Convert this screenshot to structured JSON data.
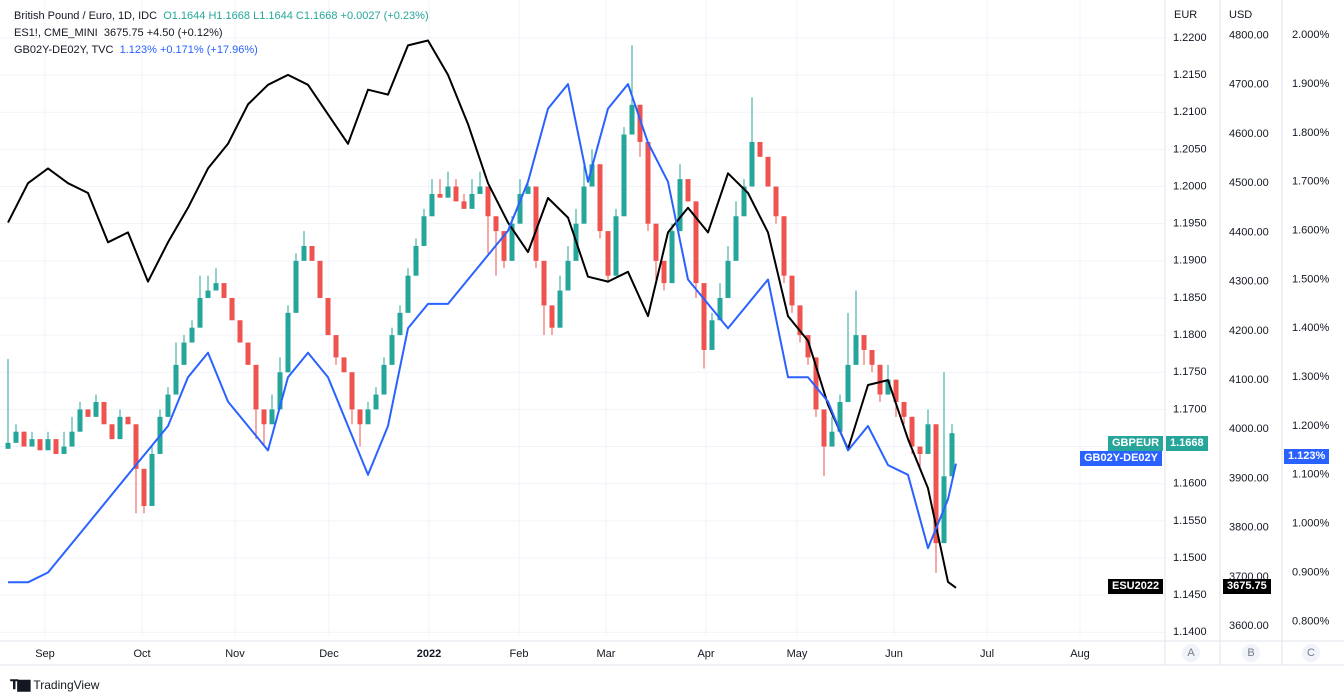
{
  "legend": {
    "l1_name": "British Pound / Euro, 1D, IDC",
    "l1_values": "O1.1644  H1.1668  L1.1644  C1.1668  +0.0027 (+0.23%)",
    "l2_name": "ES1!, CME_MINI",
    "l2_values": "3675.75  +4.50 (+0.12%)",
    "l3_name": "GB02Y-DE02Y, TVC",
    "l3_values": "1.123%  +0.171% (+17.96%)"
  },
  "axis_heads": {
    "eur": "EUR",
    "usd": "USD"
  },
  "tags": {
    "gbpeur_label": "GBPEUR",
    "gbpeur_value": "1.1668",
    "spread_label": "GB02Y-DE02Y",
    "spread_value": "1.123%",
    "es_label": "ESU2022",
    "es_value": "3675.75"
  },
  "corners": {
    "a": "A",
    "b": "B",
    "c": "C"
  },
  "brand": "TradingView",
  "colors": {
    "up": "#26a69a",
    "down": "#ef5350",
    "spread": "#2962ff",
    "es": "#000000"
  },
  "chart_data": {
    "type": "line",
    "x_ticks": [
      "Sep",
      "Oct",
      "Nov",
      "Dec",
      "2022",
      "Feb",
      "Mar",
      "Apr",
      "May",
      "Jun",
      "Jul",
      "Aug"
    ],
    "eur_axis": {
      "ticks": [
        "1.2200",
        "1.2150",
        "1.2100",
        "1.2050",
        "1.2000",
        "1.1950",
        "1.1900",
        "1.1850",
        "1.1800",
        "1.1750",
        "1.1700",
        "1.1650",
        "1.1600",
        "1.1550",
        "1.1500",
        "1.1450",
        "1.1400"
      ],
      "ylim": [
        1.1395,
        1.2243
      ]
    },
    "usd_axis": {
      "ticks": [
        "4800.00",
        "4700.00",
        "4600.00",
        "4500.00",
        "4400.00",
        "4300.00",
        "4200.00",
        "4100.00",
        "4000.00",
        "3900.00",
        "3800.00",
        "3700.00",
        "3600.00"
      ],
      "ylim": [
        3580,
        4860
      ]
    },
    "pct_axis": {
      "ticks": [
        "2.000%",
        "1.900%",
        "1.800%",
        "1.700%",
        "1.600%",
        "1.500%",
        "1.400%",
        "1.300%",
        "1.200%",
        "1.100%",
        "1.000%",
        "0.900%",
        "0.800%"
      ],
      "ylim": [
        0.77,
        2.06
      ]
    },
    "series": [
      {
        "name": "GBPEUR",
        "type": "candlestick",
        "axis": "eur",
        "x": [
          0,
          8,
          16,
          24,
          32,
          40,
          48,
          56,
          64,
          72,
          80,
          88,
          96,
          104,
          112,
          120,
          128,
          136,
          144,
          152,
          160,
          168,
          176,
          184,
          192,
          200,
          208,
          216,
          224,
          232,
          240,
          248,
          256,
          264,
          272,
          280,
          288,
          296,
          304,
          312,
          320,
          328,
          336,
          344,
          352,
          360,
          368,
          376,
          384,
          392,
          400,
          408,
          416,
          424,
          432,
          440,
          448,
          456,
          464,
          472,
          480,
          488,
          496,
          504,
          512,
          520,
          528,
          536,
          544,
          552,
          560,
          568,
          576,
          584,
          592,
          600,
          608,
          616,
          624,
          632,
          640,
          648,
          656,
          664,
          672,
          680,
          688,
          696,
          704,
          712,
          720,
          728,
          736,
          744,
          752,
          760,
          768,
          776,
          784,
          792,
          800,
          808,
          816,
          824,
          832,
          840,
          848,
          856,
          864,
          872,
          880,
          888,
          896,
          904,
          912,
          920,
          928,
          936,
          944
        ],
        "close": [
          1.1655,
          1.167,
          1.165,
          1.166,
          1.1645,
          1.166,
          1.164,
          1.165,
          1.167,
          1.17,
          1.169,
          1.171,
          1.168,
          1.166,
          1.169,
          1.168,
          1.162,
          1.157,
          1.164,
          1.169,
          1.172,
          1.176,
          1.179,
          1.181,
          1.185,
          1.186,
          1.187,
          1.185,
          1.182,
          1.179,
          1.176,
          1.17,
          1.168,
          1.17,
          1.175,
          1.183,
          1.19,
          1.192,
          1.19,
          1.185,
          1.18,
          1.177,
          1.175,
          1.17,
          1.168,
          1.17,
          1.172,
          1.176,
          1.18,
          1.183,
          1.188,
          1.192,
          1.196,
          1.199,
          1.1985,
          1.2,
          1.198,
          1.197,
          1.199,
          1.2,
          1.196,
          1.194,
          1.19,
          1.195,
          1.199,
          1.2,
          1.19,
          1.184,
          1.181,
          1.186,
          1.19,
          1.195,
          1.2,
          1.203,
          1.194,
          1.188,
          1.196,
          1.207,
          1.211,
          1.206,
          1.195,
          1.19,
          1.187,
          1.194,
          1.201,
          1.198,
          1.187,
          1.178,
          1.182,
          1.185,
          1.19,
          1.196,
          1.2,
          1.206,
          1.204,
          1.2,
          1.196,
          1.188,
          1.184,
          1.18,
          1.177,
          1.17,
          1.165,
          1.167,
          1.171,
          1.176,
          1.18,
          1.178,
          1.176,
          1.172,
          1.174,
          1.171,
          1.169,
          1.165,
          1.164,
          1.168,
          1.152,
          1.161,
          1.1668
        ],
        "wick": [
          1.1768,
          1.168,
          1.166,
          1.167,
          1.1655,
          1.167,
          1.165,
          1.167,
          1.169,
          1.171,
          1.17,
          1.172,
          1.17,
          1.167,
          1.17,
          1.169,
          1.156,
          1.156,
          1.165,
          1.17,
          1.173,
          1.179,
          1.18,
          1.182,
          1.188,
          1.188,
          1.189,
          1.187,
          1.183,
          1.18,
          1.178,
          1.166,
          1.165,
          1.172,
          1.177,
          1.184,
          1.191,
          1.194,
          1.191,
          1.186,
          1.181,
          1.176,
          1.176,
          1.168,
          1.165,
          1.171,
          1.173,
          1.177,
          1.181,
          1.184,
          1.189,
          1.193,
          1.197,
          1.201,
          1.201,
          1.202,
          1.201,
          1.199,
          1.201,
          1.202,
          1.191,
          1.188,
          1.189,
          1.196,
          1.201,
          1.201,
          1.189,
          1.18,
          1.18,
          1.188,
          1.192,
          1.197,
          1.203,
          1.205,
          1.193,
          1.187,
          1.197,
          1.208,
          1.219,
          1.204,
          1.194,
          1.187,
          1.186,
          1.195,
          1.203,
          1.2,
          1.185,
          1.1755,
          1.183,
          1.187,
          1.192,
          1.198,
          1.201,
          1.212,
          1.206,
          1.201,
          1.195,
          1.187,
          1.183,
          1.179,
          1.176,
          1.169,
          1.161,
          1.169,
          1.172,
          1.183,
          1.186,
          1.176,
          1.175,
          1.171,
          1.176,
          1.169,
          1.168,
          1.164,
          1.162,
          1.17,
          1.148,
          1.175,
          1.168
        ]
      },
      {
        "name": "GB02Y-DE02Y",
        "type": "line",
        "axis": "pct",
        "x": [
          0,
          20,
          40,
          60,
          80,
          100,
          120,
          140,
          160,
          180,
          200,
          220,
          240,
          260,
          280,
          300,
          320,
          340,
          360,
          380,
          400,
          420,
          440,
          460,
          480,
          500,
          520,
          540,
          560,
          580,
          600,
          620,
          640,
          660,
          680,
          700,
          720,
          740,
          760,
          780,
          800,
          820,
          840,
          860,
          880,
          900,
          920,
          940,
          948
        ],
        "y": [
          0.88,
          0.88,
          0.9,
          0.95,
          1.0,
          1.05,
          1.1,
          1.15,
          1.2,
          1.3,
          1.35,
          1.25,
          1.2,
          1.15,
          1.3,
          1.35,
          1.3,
          1.2,
          1.1,
          1.2,
          1.4,
          1.45,
          1.45,
          1.5,
          1.55,
          1.6,
          1.7,
          1.85,
          1.9,
          1.7,
          1.85,
          1.9,
          1.78,
          1.7,
          1.5,
          1.45,
          1.4,
          1.45,
          1.5,
          1.3,
          1.3,
          1.25,
          1.15,
          1.2,
          1.12,
          1.1,
          0.95,
          1.05,
          1.123
        ]
      },
      {
        "name": "ESU2022",
        "type": "line",
        "axis": "usd",
        "x": [
          0,
          20,
          40,
          60,
          80,
          100,
          120,
          140,
          160,
          180,
          200,
          220,
          240,
          260,
          280,
          300,
          320,
          340,
          360,
          380,
          400,
          420,
          440,
          460,
          480,
          500,
          520,
          540,
          560,
          580,
          600,
          620,
          640,
          660,
          680,
          700,
          720,
          740,
          760,
          780,
          800,
          820,
          840,
          860,
          880,
          900,
          920,
          940,
          948
        ],
        "y": [
          4420,
          4500,
          4530,
          4500,
          4480,
          4380,
          4400,
          4300,
          4380,
          4450,
          4530,
          4580,
          4660,
          4700,
          4720,
          4700,
          4640,
          4580,
          4690,
          4680,
          4780,
          4790,
          4720,
          4620,
          4500,
          4420,
          4360,
          4470,
          4430,
          4310,
          4300,
          4320,
          4230,
          4400,
          4450,
          4400,
          4520,
          4480,
          4400,
          4230,
          4180,
          4050,
          3960,
          4090,
          4100,
          3980,
          3880,
          3690,
          3678
        ]
      }
    ]
  }
}
